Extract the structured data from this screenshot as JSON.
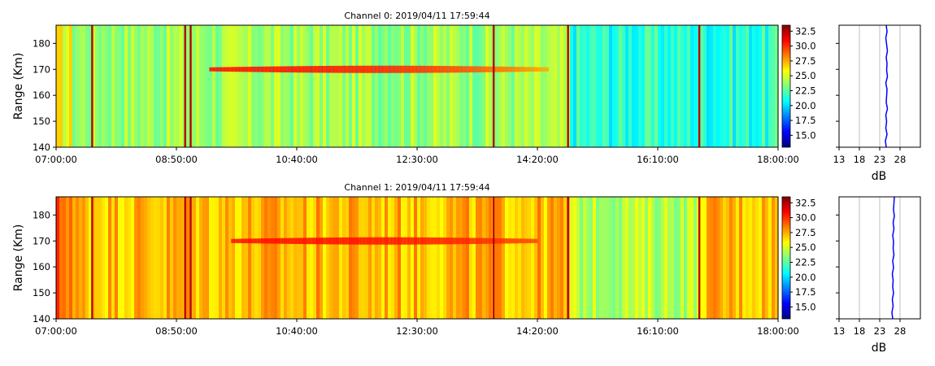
{
  "colors": {
    "jet": [
      "#00007f",
      "#0000ff",
      "#007fff",
      "#00ffff",
      "#7fff7f",
      "#ffff00",
      "#ff7f00",
      "#ff0000",
      "#7f0000"
    ],
    "profile_line": "#0000ff",
    "grid": "#b0b0b0"
  },
  "chart_data": [
    {
      "type": "heatmap",
      "title": "Channel 0: 2019/04/11 17:59:44",
      "ylabel": "Range (Km)",
      "x_ticks": [
        "07:00:00",
        "08:50:00",
        "10:40:00",
        "12:30:00",
        "14:20:00",
        "16:10:00",
        "18:00:00"
      ],
      "x_range": [
        "07:00:00",
        "18:00:00"
      ],
      "y_ticks": [
        140,
        150,
        160,
        170,
        180
      ],
      "y_range": [
        140,
        187
      ],
      "colorbar": {
        "ticks": [
          "15.0",
          "17.5",
          "20.0",
          "22.5",
          "25.0",
          "27.5",
          "30.0",
          "32.5"
        ],
        "range": [
          13,
          33.5
        ]
      },
      "base_level_db": 24.0,
      "echo_band": {
        "range_km": 170,
        "start": "09:20:00",
        "end": "14:30:00",
        "peak_db": 29.5
      },
      "bright_stripes": [
        "07:33:00",
        "08:58:00",
        "09:03:00",
        "13:40:00",
        "14:48:00",
        "16:48:00"
      ],
      "quiet_segments": [
        {
          "start": "14:50:00",
          "end": "18:00:00",
          "level_db": 21.5
        }
      ],
      "profile": {
        "xlabel": "dB",
        "x_ticks": [
          "13",
          "18",
          "23",
          "28"
        ],
        "x_range": [
          13,
          33
        ],
        "grid": true,
        "values_db": [
          24.6,
          24.4,
          24.8,
          24.5,
          24.7,
          24.5,
          24.9,
          24.6,
          24.7,
          24.8,
          24.5,
          24.9,
          24.7,
          24.8,
          24.6,
          24.9,
          24.7,
          24.5,
          24.8,
          24.6
        ]
      }
    },
    {
      "type": "heatmap",
      "title": "Channel 1: 2019/04/11 17:59:44",
      "ylabel": "Range (Km)",
      "x_ticks": [
        "07:00:00",
        "08:50:00",
        "10:40:00",
        "12:30:00",
        "14:20:00",
        "16:10:00",
        "18:00:00"
      ],
      "x_range": [
        "07:00:00",
        "18:00:00"
      ],
      "y_ticks": [
        140,
        150,
        160,
        170,
        180
      ],
      "y_range": [
        140,
        187
      ],
      "colorbar": {
        "ticks": [
          "15.0",
          "17.5",
          "20.0",
          "22.5",
          "25.0",
          "27.5",
          "30.0",
          "32.5"
        ],
        "range": [
          13,
          33.5
        ]
      },
      "base_level_db": 27.5,
      "echo_band": {
        "range_km": 170,
        "start": "09:40:00",
        "end": "14:20:00",
        "peak_db": 29.5
      },
      "bright_stripes": [
        "07:33:00",
        "08:58:00",
        "09:03:00",
        "13:40:00",
        "14:48:00",
        "16:48:00"
      ],
      "quiet_segments": [
        {
          "start": "14:50:00",
          "end": "16:50:00",
          "level_db": 24.5
        }
      ],
      "profile": {
        "xlabel": "dB",
        "x_ticks": [
          "13",
          "18",
          "23",
          "28"
        ],
        "x_range": [
          13,
          33
        ],
        "grid": true,
        "values_db": [
          26.2,
          26.0,
          26.3,
          26.1,
          26.4,
          26.2,
          26.3,
          26.1,
          26.4,
          26.2,
          26.5,
          26.3,
          26.4,
          26.2,
          26.5,
          26.3,
          26.6,
          26.4,
          26.5,
          26.6
        ]
      }
    }
  ]
}
